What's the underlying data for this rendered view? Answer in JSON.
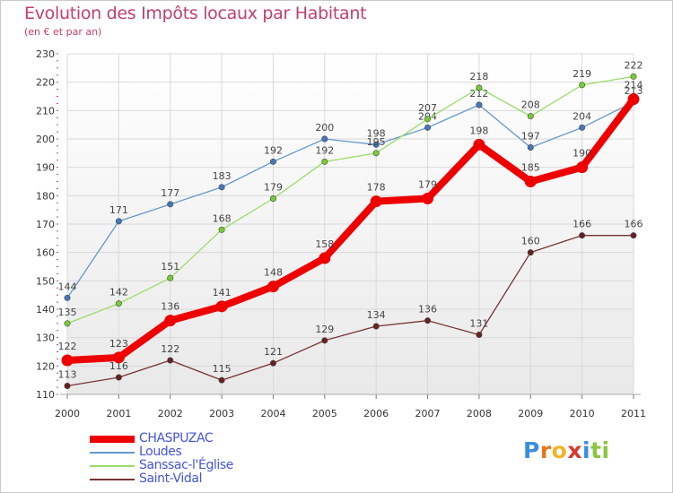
{
  "header": {
    "title": "Evolution des Impôts locaux par Habitant",
    "subtitle": "(en € et par an)"
  },
  "chart_data": {
    "type": "line",
    "title": "Evolution des Impôts locaux par Habitant",
    "subtitle": "(en € et par an)",
    "xlabel": "",
    "ylabel": "",
    "ylim": [
      110,
      230
    ],
    "yticks": [
      110,
      120,
      130,
      140,
      150,
      160,
      170,
      180,
      190,
      200,
      210,
      220,
      230
    ],
    "categories": [
      "2000",
      "2001",
      "2002",
      "2003",
      "2004",
      "2005",
      "2006",
      "2007",
      "2008",
      "2009",
      "2010",
      "2011"
    ],
    "grid": true,
    "legend_position": "bottom-left",
    "series": [
      {
        "name": "Loudes",
        "color": "#6699cc",
        "marker_color": "#4477bb",
        "values": [
          144,
          171,
          177,
          183,
          192,
          200,
          198,
          204,
          212,
          197,
          204,
          213
        ]
      },
      {
        "name": "Sanssac-l'Église",
        "color": "#99dd66",
        "marker_color": "#77cc33",
        "values": [
          135,
          142,
          151,
          168,
          179,
          192,
          195,
          207,
          218,
          208,
          219,
          222
        ]
      },
      {
        "name": "Saint-Vidal",
        "color": "#773333",
        "marker_color": "#662222",
        "values": [
          113,
          116,
          122,
          115,
          121,
          129,
          134,
          136,
          131,
          160,
          166,
          166
        ]
      },
      {
        "name": "CHASPUZAC",
        "color": "#ee0000",
        "marker_color": "#ee0000",
        "values": [
          122,
          123,
          136,
          141,
          148,
          158,
          178,
          179,
          198,
          185,
          190,
          214
        ]
      }
    ]
  },
  "legend": {
    "items": [
      {
        "label": "CHASPUZAC",
        "color": "#ee0000"
      },
      {
        "label": "Loudes",
        "color": "#6699cc"
      },
      {
        "label": "Sanssac-l'Église",
        "color": "#99dd66"
      },
      {
        "label": "Saint-Vidal",
        "color": "#773333"
      }
    ],
    "text_color": "#4455dd"
  },
  "logo": {
    "text": "Proxiti",
    "letters": [
      "P",
      "r",
      "o",
      "x",
      "i",
      "t",
      "i"
    ],
    "colors": [
      "#3a8de0",
      "#e8761e",
      "#f0b428",
      "#d83a30",
      "#3a8de0",
      "#8bc440",
      "#8bc440"
    ]
  }
}
